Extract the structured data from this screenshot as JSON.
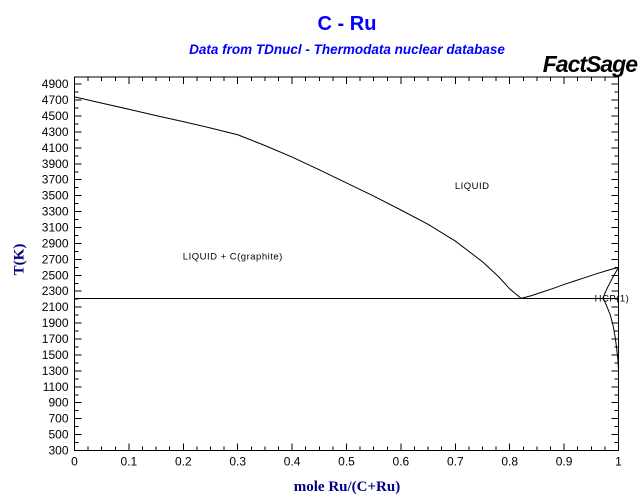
{
  "header": {
    "title": "C - Ru",
    "subtitle": "Data from TDnucl - Thermodata nuclear database",
    "brand": "FactSage"
  },
  "colors": {
    "title_blue": "#0000ff",
    "axis_navy": "#000080",
    "line_black": "#000000"
  },
  "chart_data": {
    "type": "line",
    "title": "C - Ru",
    "xlabel": "mole Ru/(C+Ru)",
    "ylabel": "T(K)",
    "xlim": [
      0,
      1
    ],
    "ylim": [
      300,
      4990
    ],
    "grid": false,
    "x_ticks": [
      0,
      0.1,
      0.2,
      0.3,
      0.4,
      0.5,
      0.6,
      0.7,
      0.8,
      0.9,
      1
    ],
    "x_minor_step": 0.025,
    "y_ticks": [
      300,
      500,
      700,
      900,
      1100,
      1300,
      1500,
      1700,
      1900,
      2100,
      2300,
      2500,
      2700,
      2900,
      3100,
      3300,
      3500,
      3700,
      3900,
      4100,
      4300,
      4500,
      4700,
      4900
    ],
    "y_minor_step": 100,
    "series": [
      {
        "name": "liquidus-graphite",
        "points": [
          [
            0,
            4740
          ],
          [
            0.05,
            4662
          ],
          [
            0.1,
            4585
          ],
          [
            0.15,
            4505
          ],
          [
            0.2,
            4430
          ],
          [
            0.25,
            4350
          ],
          [
            0.3,
            4265
          ],
          [
            0.35,
            4130
          ],
          [
            0.4,
            3985
          ],
          [
            0.45,
            3825
          ],
          [
            0.5,
            3660
          ],
          [
            0.55,
            3495
          ],
          [
            0.6,
            3320
          ],
          [
            0.65,
            3140
          ],
          [
            0.7,
            2930
          ],
          [
            0.75,
            2670
          ],
          [
            0.78,
            2480
          ],
          [
            0.8,
            2330
          ],
          [
            0.821,
            2210
          ]
        ]
      },
      {
        "name": "liquidus-ru",
        "points": [
          [
            0.821,
            2210
          ],
          [
            0.84,
            2245
          ],
          [
            0.86,
            2290
          ],
          [
            0.88,
            2335
          ],
          [
            0.9,
            2385
          ],
          [
            0.92,
            2430
          ],
          [
            0.94,
            2475
          ],
          [
            0.96,
            2520
          ],
          [
            0.98,
            2562
          ],
          [
            1,
            2600
          ]
        ]
      },
      {
        "name": "hcp-solidus",
        "points": [
          [
            1,
            2600
          ],
          [
            0.995,
            2540
          ],
          [
            0.99,
            2480
          ],
          [
            0.985,
            2415
          ],
          [
            0.98,
            2350
          ],
          [
            0.976,
            2290
          ],
          [
            0.9735,
            2250
          ],
          [
            0.972,
            2210
          ]
        ]
      },
      {
        "name": "eutectic-line",
        "straight": true,
        "points": [
          [
            0,
            2210
          ],
          [
            1,
            2210
          ]
        ]
      },
      {
        "name": "hcp-solvus",
        "points": [
          [
            0.972,
            2210
          ],
          [
            0.978,
            2120
          ],
          [
            0.985,
            2000
          ],
          [
            0.99,
            1870
          ],
          [
            0.994,
            1720
          ],
          [
            0.997,
            1560
          ],
          [
            0.999,
            1430
          ],
          [
            1,
            1300
          ]
        ]
      }
    ],
    "annotations": [
      {
        "id": "liquid",
        "text": "LIQUID",
        "x": 0.731,
        "y": 3620
      },
      {
        "id": "liquid-graphite",
        "text": "LIQUID + C(graphite)",
        "x": 0.291,
        "y": 2735
      },
      {
        "id": "hcp",
        "text": "HCP(1)",
        "x": 0.988,
        "y": 2210
      }
    ],
    "eutectic": {
      "x": 0.821,
      "T": 2210
    }
  }
}
